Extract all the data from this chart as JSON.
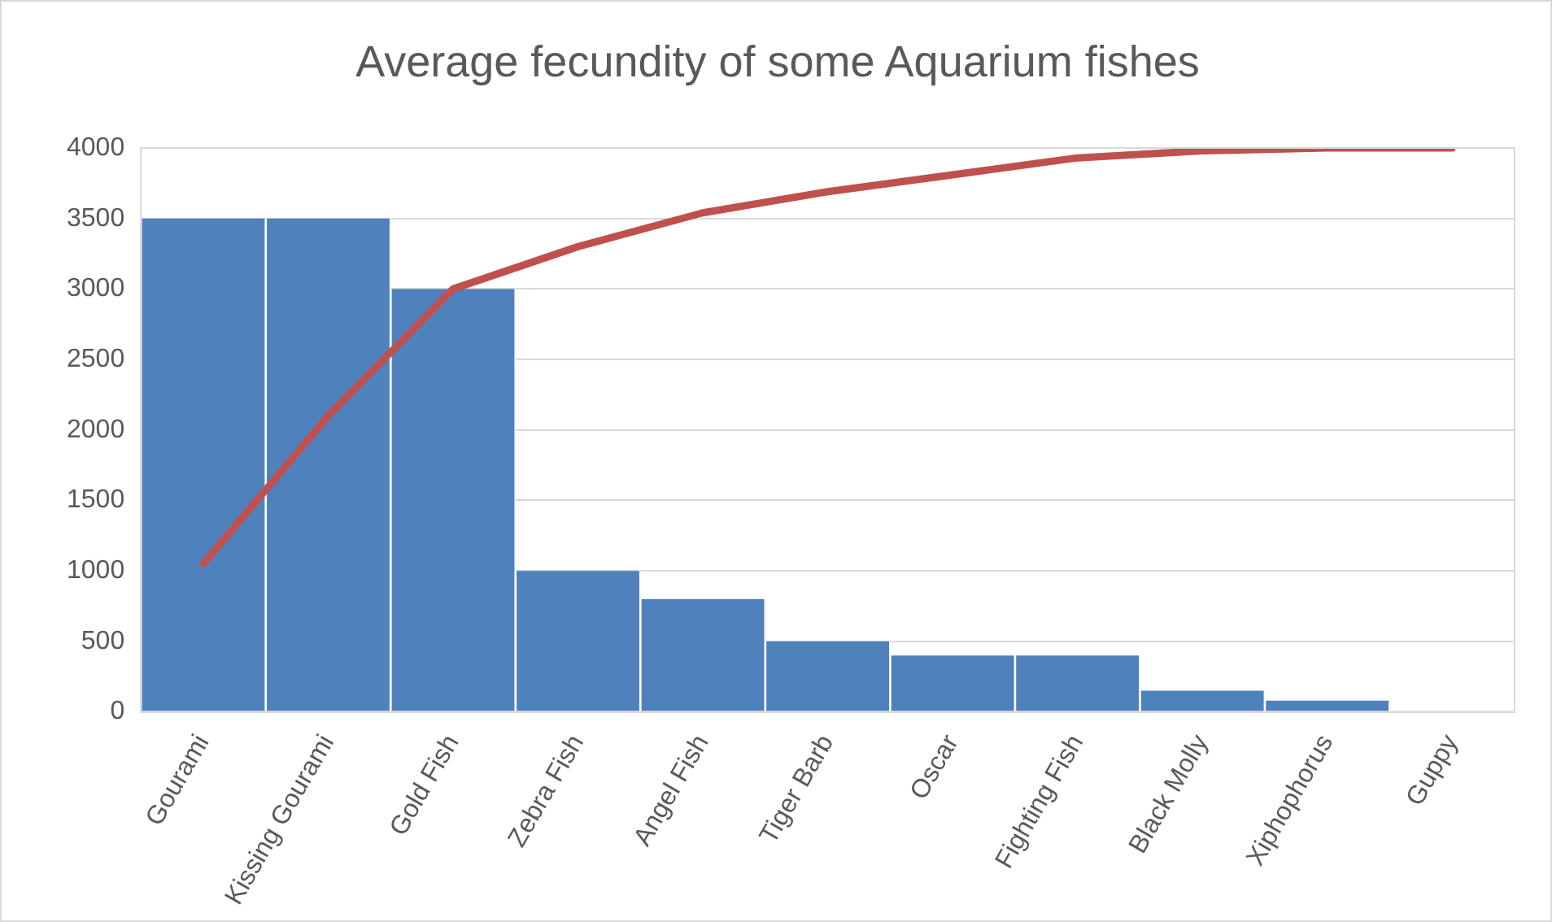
{
  "chart_data": {
    "type": "bar",
    "title": "Average fecundity of some Aquarium fishes",
    "categories": [
      "Gourami",
      "Kissing Gourami",
      "Gold Fish",
      "Zebra Fish",
      "Angel Fish",
      "Tiger Barb",
      "Oscar",
      "Fighting Fish",
      "Black Molly",
      "Xiphophorus",
      "Guppy"
    ],
    "series": [
      {
        "color": "#4f81bd",
        "values": [
          3500,
          3500,
          3000,
          1000,
          800,
          500,
          400,
          400,
          150,
          80,
          0
        ]
      },
      {
        "type": "line",
        "color": "#c0504d",
        "values": [
          1050,
          2100,
          3000,
          3300,
          3540,
          3690,
          3810,
          3930,
          3980,
          4000,
          4000
        ]
      }
    ],
    "ylim": [
      0,
      4000
    ],
    "yticks": [
      0,
      500,
      1000,
      1500,
      2000,
      2500,
      3000,
      3500,
      4000
    ],
    "grid": "y",
    "legend": false,
    "marker": "none",
    "line_style": "solid"
  }
}
